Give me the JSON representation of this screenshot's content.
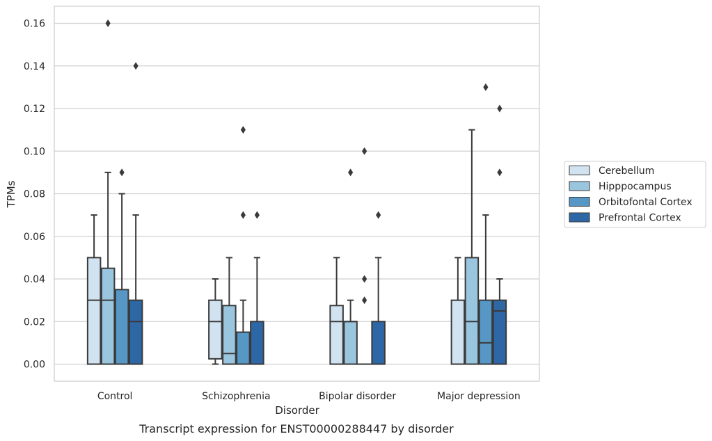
{
  "chart_data": {
    "type": "box",
    "caption": "Transcript expression for ENST00000288447 by disorder",
    "xlabel": "Disorder",
    "ylabel": "TPMs",
    "ylim": [
      -0.008,
      0.168
    ],
    "yticks": [
      "0.00",
      "0.02",
      "0.04",
      "0.06",
      "0.08",
      "0.10",
      "0.12",
      "0.14",
      "0.16"
    ],
    "grid": "horizontal",
    "legend_position": "right",
    "categories": [
      "Control",
      "Schizophrenia",
      "Bipolar disorder",
      "Major depression"
    ],
    "series": [
      {
        "name": "Cerebellum",
        "color": "#d1e2f0",
        "boxes": [
          {
            "whisker_low": 0.0,
            "q1": 0.0,
            "median": 0.03,
            "q3": 0.05,
            "whisker_high": 0.07,
            "outliers": []
          },
          {
            "whisker_low": 0.0,
            "q1": 0.0025,
            "median": 0.02,
            "q3": 0.03,
            "whisker_high": 0.04,
            "outliers": []
          },
          {
            "whisker_low": 0.0,
            "q1": 0.0,
            "median": 0.02,
            "q3": 0.0275,
            "whisker_high": 0.05,
            "outliers": []
          },
          {
            "whisker_low": 0.0,
            "q1": 0.0,
            "median": 0.0,
            "q3": 0.03,
            "whisker_high": 0.05,
            "outliers": []
          }
        ]
      },
      {
        "name": "Hipppocampus",
        "color": "#9ac5df",
        "boxes": [
          {
            "whisker_low": 0.0,
            "q1": 0.0,
            "median": 0.03,
            "q3": 0.045,
            "whisker_high": 0.09,
            "outliers": [
              0.16
            ]
          },
          {
            "whisker_low": 0.0,
            "q1": 0.0,
            "median": 0.005,
            "q3": 0.0275,
            "whisker_high": 0.05,
            "outliers": []
          },
          {
            "whisker_low": 0.0,
            "q1": 0.0,
            "median": 0.02,
            "q3": 0.02,
            "whisker_high": 0.03,
            "outliers": [
              0.09
            ]
          },
          {
            "whisker_low": 0.0,
            "q1": 0.0,
            "median": 0.02,
            "q3": 0.05,
            "whisker_high": 0.11,
            "outliers": []
          }
        ]
      },
      {
        "name": "Orbitofontal Cortex",
        "color": "#5697c6",
        "boxes": [
          {
            "whisker_low": 0.0,
            "q1": 0.0,
            "median": 0.0,
            "q3": 0.035,
            "whisker_high": 0.08,
            "outliers": [
              0.09
            ]
          },
          {
            "whisker_low": 0.0,
            "q1": 0.0,
            "median": 0.0,
            "q3": 0.015,
            "whisker_high": 0.03,
            "outliers": [
              0.07,
              0.11
            ]
          },
          {
            "whisker_low": 0.0,
            "q1": 0.0,
            "median": 0.0,
            "q3": 0.0,
            "whisker_high": 0.0,
            "outliers": [
              0.03,
              0.04,
              0.1
            ]
          },
          {
            "whisker_low": 0.0,
            "q1": 0.0,
            "median": 0.01,
            "q3": 0.03,
            "whisker_high": 0.07,
            "outliers": [
              0.13
            ]
          }
        ]
      },
      {
        "name": "Prefrontal Cortex",
        "color": "#2e67a5",
        "boxes": [
          {
            "whisker_low": 0.0,
            "q1": 0.0,
            "median": 0.02,
            "q3": 0.03,
            "whisker_high": 0.07,
            "outliers": [
              0.14
            ]
          },
          {
            "whisker_low": 0.0,
            "q1": 0.0,
            "median": 0.0,
            "q3": 0.02,
            "whisker_high": 0.05,
            "outliers": [
              0.07
            ]
          },
          {
            "whisker_low": 0.0,
            "q1": 0.0,
            "median": 0.0,
            "q3": 0.02,
            "whisker_high": 0.05,
            "outliers": [
              0.07
            ]
          },
          {
            "whisker_low": 0.0,
            "q1": 0.0,
            "median": 0.025,
            "q3": 0.03,
            "whisker_high": 0.04,
            "outliers": [
              0.09,
              0.12
            ]
          }
        ]
      }
    ]
  }
}
